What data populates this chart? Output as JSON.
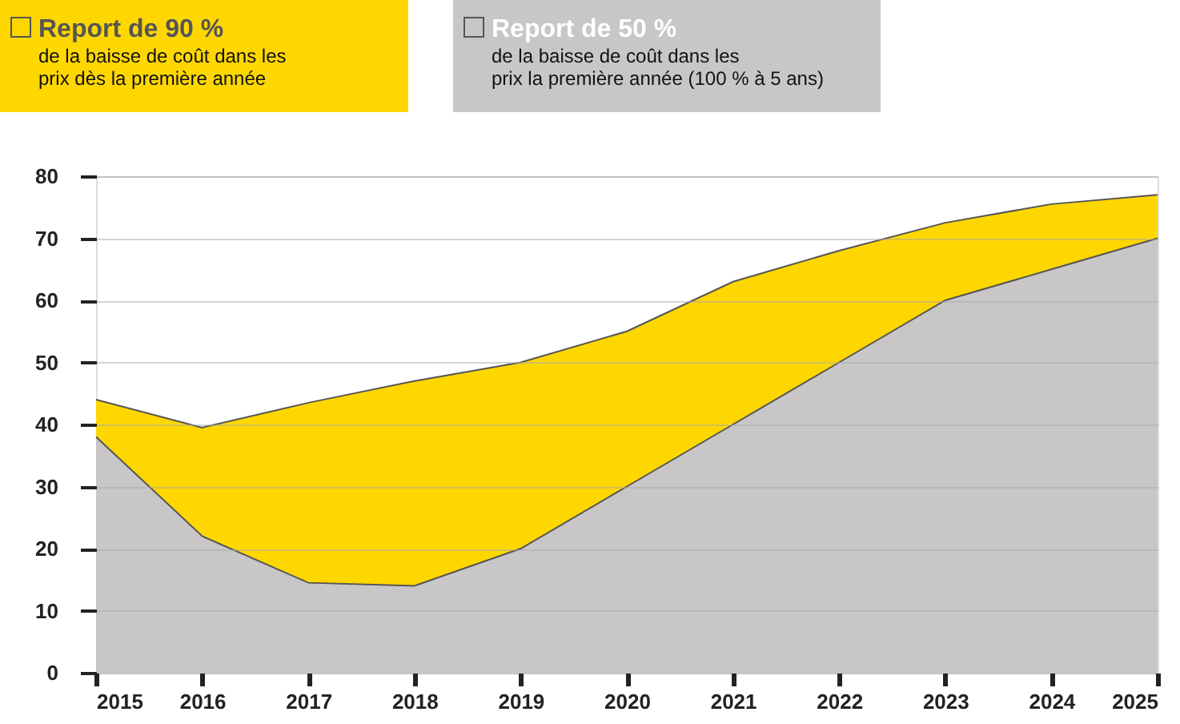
{
  "chart_data": {
    "type": "area",
    "x": [
      2015,
      2016,
      2017,
      2018,
      2019,
      2020,
      2021,
      2022,
      2023,
      2024,
      2025
    ],
    "series": [
      {
        "name": "Report de 90 %",
        "color": "#ffd700",
        "values": [
          44,
          39.5,
          43.5,
          47,
          50,
          55,
          63,
          68,
          72.5,
          75.5,
          77
        ]
      },
      {
        "name": "Report de 50 %",
        "color": "#c8c6c6",
        "values": [
          38,
          22,
          14.5,
          14,
          20,
          30,
          40,
          50,
          60,
          65,
          70
        ]
      }
    ],
    "annotations": [
      "de la baisse de coût dans les\nprix dès la première année",
      "de la baisse de coût dans les\nprix la première année (100 % à 5 ans)"
    ],
    "xlim": [
      2015,
      2025
    ],
    "xticks": [
      2015,
      2016,
      2017,
      2018,
      2019,
      2020,
      2021,
      2022,
      2023,
      2024,
      2025
    ],
    "ylim": [
      0,
      80
    ],
    "yticks": [
      0,
      10,
      20,
      30,
      40,
      50,
      60,
      70,
      80
    ],
    "grid": "y",
    "legend": "top"
  }
}
